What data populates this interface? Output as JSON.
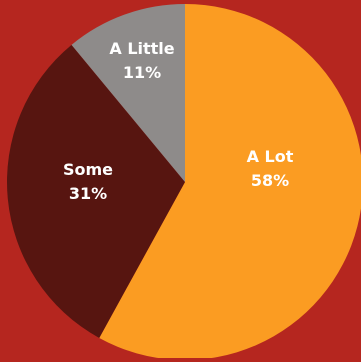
{
  "chart_data": {
    "type": "pie",
    "title": "",
    "slices": [
      {
        "label": "A Lot",
        "value": 58,
        "value_label": "58%",
        "color": "#fb9c22"
      },
      {
        "label": "Some",
        "value": 31,
        "value_label": "31%",
        "color": "#571510"
      },
      {
        "label": "A Little",
        "value": 11,
        "value_label": "11%",
        "color": "#8e8b8a"
      }
    ],
    "start_angle": "12 o'clock",
    "direction": "clockwise",
    "legend": "none",
    "background_color": "#b5261f"
  }
}
